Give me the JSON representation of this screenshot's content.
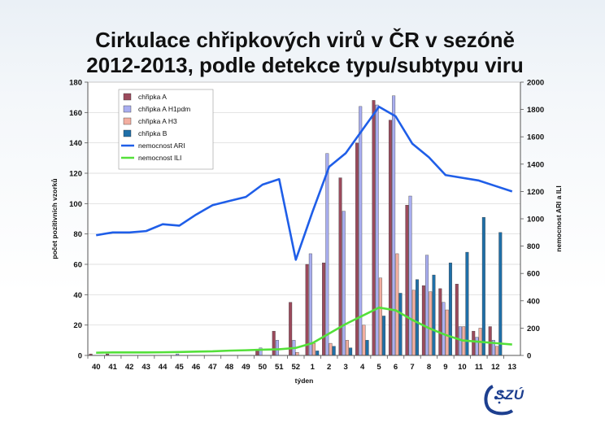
{
  "title": {
    "line1": "Cirkulace chřipkových virů v ČR v sezóně",
    "line2": "2012-2013, podle detekce typu/subtypu viru"
  },
  "logo": {
    "text": "SZÚ"
  },
  "chart_data": {
    "type": "bar",
    "categories": [
      "40",
      "41",
      "42",
      "43",
      "44",
      "45",
      "46",
      "47",
      "48",
      "49",
      "50",
      "51",
      "52",
      "1",
      "2",
      "3",
      "4",
      "5",
      "6",
      "7",
      "8",
      "9",
      "10",
      "11",
      "12",
      "13"
    ],
    "xlabel": "týden",
    "ylabel_left": "počet pozitivních vzorků",
    "ylabel_right": "nemocnost ARI a ILI",
    "ylim_left": [
      0,
      180
    ],
    "ylim_right": [
      0,
      2000
    ],
    "yticks_left": [
      0,
      20,
      40,
      60,
      80,
      100,
      120,
      140,
      160,
      180
    ],
    "yticks_right": [
      0,
      200,
      400,
      600,
      800,
      1000,
      1200,
      1400,
      1600,
      1800,
      2000
    ],
    "grid": true,
    "legend_position": "top-left",
    "series": [
      {
        "name": "chřipka A",
        "kind": "bar",
        "axis": "left",
        "color": "#9b4a5c",
        "values": [
          1,
          1,
          0,
          0,
          0,
          0,
          0,
          0,
          0,
          0,
          3,
          16,
          35,
          60,
          61,
          117,
          140,
          168,
          155,
          99,
          46,
          44,
          47,
          16,
          19,
          0
        ]
      },
      {
        "name": "chřipka A H1pdm",
        "kind": "bar",
        "axis": "left",
        "color": "#a9aef0",
        "values": [
          0,
          0,
          0,
          0,
          0,
          1,
          0,
          0,
          0,
          0,
          5,
          10,
          10,
          67,
          133,
          95,
          164,
          165,
          171,
          105,
          66,
          35,
          19,
          12,
          10,
          0
        ]
      },
      {
        "name": "chřipka A H3",
        "kind": "bar",
        "axis": "left",
        "color": "#f3aea0",
        "values": [
          0,
          0,
          0,
          0,
          0,
          0,
          0,
          0,
          0,
          0,
          0,
          0,
          2,
          8,
          8,
          10,
          20,
          51,
          67,
          43,
          42,
          30,
          19,
          18,
          6,
          0
        ]
      },
      {
        "name": "chřipka B",
        "kind": "bar",
        "axis": "left",
        "color": "#1f6fa8",
        "values": [
          0,
          0,
          0,
          0,
          0,
          0,
          0,
          0,
          0,
          0,
          0,
          0,
          0,
          3,
          6,
          5,
          10,
          26,
          41,
          50,
          53,
          61,
          68,
          91,
          81,
          0
        ]
      },
      {
        "name": "nemocnost ARI",
        "kind": "line",
        "axis": "right",
        "color": "#1f5ee8",
        "values": [
          880,
          900,
          900,
          910,
          960,
          950,
          1030,
          1100,
          1130,
          1160,
          1250,
          1290,
          700,
          1050,
          1380,
          1480,
          1650,
          1820,
          1750,
          1550,
          1450,
          1320,
          1300,
          1280,
          1240,
          1200
        ]
      },
      {
        "name": "nemocnost ILI",
        "kind": "line",
        "axis": "right",
        "color": "#54e03a",
        "values": [
          20,
          22,
          22,
          22,
          23,
          25,
          28,
          30,
          35,
          38,
          42,
          45,
          55,
          90,
          160,
          230,
          290,
          350,
          330,
          260,
          200,
          150,
          110,
          100,
          90,
          80
        ]
      }
    ]
  }
}
